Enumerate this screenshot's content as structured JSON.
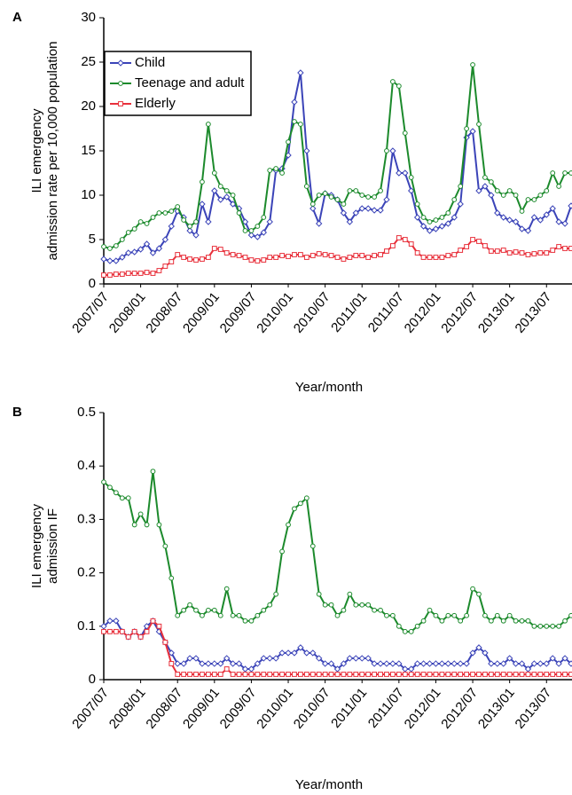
{
  "chart_data": [
    {
      "type": "line",
      "panel": "A",
      "categories": [
        "2007/07",
        null,
        null,
        null,
        null,
        null,
        "2008/01",
        null,
        null,
        null,
        null,
        null,
        "2008/07",
        null,
        null,
        null,
        null,
        null,
        "2009/01",
        null,
        null,
        null,
        null,
        null,
        "2009/07",
        null,
        null,
        null,
        null,
        null,
        "2010/01",
        null,
        null,
        null,
        null,
        null,
        "2010/07",
        null,
        null,
        null,
        null,
        null,
        "2011/01",
        null,
        null,
        null,
        null,
        null,
        "2011/07",
        null,
        null,
        null,
        null,
        null,
        "2012/01",
        null,
        null,
        null,
        null,
        null,
        "2012/07",
        null,
        null,
        null,
        null,
        null,
        "2013/01",
        null,
        null,
        null,
        null,
        null,
        "2013/07",
        null,
        null,
        null,
        null
      ],
      "x_label": "Year/month",
      "y_label": [
        "ILI emergency",
        "admission rate per 10,000 population"
      ],
      "ylim": [
        0,
        30
      ],
      "yticks": [
        0,
        5,
        10,
        15,
        20,
        25,
        30
      ],
      "legend": "upper left",
      "series": [
        {
          "name": "Child",
          "color": "#3b44b8",
          "marker": "diamond",
          "values": [
            2.8,
            2.6,
            2.6,
            3.0,
            3.5,
            3.6,
            3.9,
            4.5,
            3.5,
            4.0,
            5.0,
            6.5,
            8.2,
            7.5,
            6.0,
            5.5,
            9.0,
            7.0,
            10.5,
            9.5,
            9.8,
            9.0,
            8.5,
            7.0,
            5.5,
            5.3,
            5.8,
            7.0,
            12.8,
            13.0,
            14.5,
            20.5,
            23.8,
            15.0,
            8.5,
            6.8,
            10.2,
            10.0,
            9.5,
            8.0,
            7.0,
            8.0,
            8.5,
            8.5,
            8.3,
            8.3,
            9.5,
            15.0,
            12.5,
            12.5,
            10.5,
            7.5,
            6.5,
            6.0,
            6.2,
            6.5,
            6.8,
            7.5,
            9.0,
            16.5,
            17.2,
            10.5,
            11.0,
            10.0,
            8.0,
            7.5,
            7.2,
            7.0,
            6.2,
            6.0,
            7.5,
            7.2,
            7.8,
            8.5,
            7.0,
            6.8,
            8.8
          ]
        },
        {
          "name": "Teenage and adult",
          "color": "#1c8a2c",
          "marker": "circle",
          "values": [
            4.2,
            4.0,
            4.3,
            5.0,
            5.8,
            6.2,
            7.0,
            6.8,
            7.5,
            8.0,
            8.0,
            8.2,
            8.7,
            7.2,
            6.5,
            7.0,
            11.5,
            18.0,
            12.5,
            11.0,
            10.5,
            10.0,
            8.0,
            6.0,
            6.0,
            6.5,
            7.5,
            12.8,
            13.0,
            12.5,
            16.0,
            18.3,
            18.0,
            11.0,
            9.0,
            10.0,
            10.2,
            9.8,
            9.5,
            9.0,
            10.5,
            10.5,
            10.0,
            9.8,
            9.8,
            10.5,
            15.0,
            22.8,
            22.3,
            17.0,
            12.0,
            9.0,
            7.5,
            7.0,
            7.2,
            7.5,
            8.0,
            9.5,
            11.0,
            17.5,
            24.7,
            18.0,
            12.0,
            11.5,
            10.5,
            10.0,
            10.5,
            10.0,
            8.2,
            9.5,
            9.5,
            10.0,
            10.5,
            12.5,
            11.0,
            12.5,
            12.5
          ]
        },
        {
          "name": "Elderly",
          "color": "#e8303b",
          "marker": "square",
          "values": [
            1.0,
            1.0,
            1.1,
            1.1,
            1.2,
            1.2,
            1.2,
            1.3,
            1.2,
            1.5,
            2.0,
            2.5,
            3.3,
            3.0,
            2.8,
            2.7,
            2.8,
            3.0,
            4.0,
            3.9,
            3.5,
            3.3,
            3.2,
            3.0,
            2.7,
            2.6,
            2.7,
            3.0,
            3.0,
            3.2,
            3.1,
            3.3,
            3.3,
            3.0,
            3.2,
            3.4,
            3.3,
            3.2,
            3.0,
            2.8,
            3.0,
            3.2,
            3.2,
            3.0,
            3.2,
            3.3,
            3.7,
            4.3,
            5.2,
            5.0,
            4.5,
            3.5,
            3.0,
            3.0,
            3.0,
            3.0,
            3.2,
            3.3,
            3.8,
            4.2,
            5.0,
            4.8,
            4.3,
            3.7,
            3.7,
            3.8,
            3.5,
            3.6,
            3.5,
            3.3,
            3.4,
            3.5,
            3.5,
            3.8,
            4.2,
            4.0,
            4.0
          ]
        }
      ]
    },
    {
      "type": "line",
      "panel": "B",
      "categories": [
        "2007/07",
        null,
        null,
        null,
        null,
        null,
        "2008/01",
        null,
        null,
        null,
        null,
        null,
        "2008/07",
        null,
        null,
        null,
        null,
        null,
        "2009/01",
        null,
        null,
        null,
        null,
        null,
        "2009/07",
        null,
        null,
        null,
        null,
        null,
        "2010/01",
        null,
        null,
        null,
        null,
        null,
        "2010/07",
        null,
        null,
        null,
        null,
        null,
        "2011/01",
        null,
        null,
        null,
        null,
        null,
        "2011/07",
        null,
        null,
        null,
        null,
        null,
        "2012/01",
        null,
        null,
        null,
        null,
        null,
        "2012/07",
        null,
        null,
        null,
        null,
        null,
        "2013/01",
        null,
        null,
        null,
        null,
        null,
        "2013/07",
        null,
        null,
        null,
        null
      ],
      "x_label": "Year/month",
      "y_label": [
        "ILI emergency",
        "admission IF"
      ],
      "ylim": [
        0,
        0.5
      ],
      "yticks": [
        0,
        0.1,
        0.2,
        0.3,
        0.4,
        0.5
      ],
      "series": [
        {
          "color": "#3b44b8",
          "marker": "diamond",
          "values": [
            0.1,
            0.11,
            0.11,
            0.09,
            0.08,
            0.09,
            0.08,
            0.1,
            0.11,
            0.09,
            0.07,
            0.05,
            0.03,
            0.03,
            0.04,
            0.04,
            0.03,
            0.03,
            0.03,
            0.03,
            0.04,
            0.03,
            0.03,
            0.02,
            0.02,
            0.03,
            0.04,
            0.04,
            0.04,
            0.05,
            0.05,
            0.05,
            0.06,
            0.05,
            0.05,
            0.04,
            0.03,
            0.03,
            0.02,
            0.03,
            0.04,
            0.04,
            0.04,
            0.04,
            0.03,
            0.03,
            0.03,
            0.03,
            0.03,
            0.02,
            0.02,
            0.03,
            0.03,
            0.03,
            0.03,
            0.03,
            0.03,
            0.03,
            0.03,
            0.03,
            0.05,
            0.06,
            0.05,
            0.03,
            0.03,
            0.03,
            0.04,
            0.03,
            0.03,
            0.02,
            0.03,
            0.03,
            0.03,
            0.04,
            0.03,
            0.04,
            0.03
          ]
        },
        {
          "color": "#1c8a2c",
          "marker": "circle",
          "values": [
            0.37,
            0.36,
            0.35,
            0.34,
            0.34,
            0.29,
            0.31,
            0.29,
            0.39,
            0.29,
            0.25,
            0.19,
            0.12,
            0.13,
            0.14,
            0.13,
            0.12,
            0.13,
            0.13,
            0.12,
            0.17,
            0.12,
            0.12,
            0.11,
            0.11,
            0.12,
            0.13,
            0.14,
            0.16,
            0.24,
            0.29,
            0.32,
            0.33,
            0.34,
            0.25,
            0.16,
            0.14,
            0.14,
            0.12,
            0.13,
            0.16,
            0.14,
            0.14,
            0.14,
            0.13,
            0.13,
            0.12,
            0.12,
            0.1,
            0.09,
            0.09,
            0.1,
            0.11,
            0.13,
            0.12,
            0.11,
            0.12,
            0.12,
            0.11,
            0.12,
            0.17,
            0.16,
            0.12,
            0.11,
            0.12,
            0.11,
            0.12,
            0.11,
            0.11,
            0.11,
            0.1,
            0.1,
            0.1,
            0.1,
            0.1,
            0.11,
            0.12
          ]
        },
        {
          "color": "#e8303b",
          "marker": "square",
          "values": [
            0.09,
            0.09,
            0.09,
            0.09,
            0.08,
            0.09,
            0.08,
            0.09,
            0.11,
            0.1,
            0.07,
            0.03,
            0.01,
            0.01,
            0.01,
            0.01,
            0.01,
            0.01,
            0.01,
            0.01,
            0.02,
            0.01,
            0.01,
            0.01,
            0.01,
            0.01,
            0.01,
            0.01,
            0.01,
            0.01,
            0.01,
            0.01,
            0.01,
            0.01,
            0.01,
            0.01,
            0.01,
            0.01,
            0.01,
            0.01,
            0.01,
            0.01,
            0.01,
            0.01,
            0.01,
            0.01,
            0.01,
            0.01,
            0.01,
            0.01,
            0.01,
            0.01,
            0.01,
            0.01,
            0.01,
            0.01,
            0.01,
            0.01,
            0.01,
            0.01,
            0.01,
            0.01,
            0.01,
            0.01,
            0.01,
            0.01,
            0.01,
            0.01,
            0.01,
            0.01,
            0.01,
            0.01,
            0.01,
            0.01,
            0.01,
            0.01,
            0.01
          ]
        }
      ]
    }
  ]
}
